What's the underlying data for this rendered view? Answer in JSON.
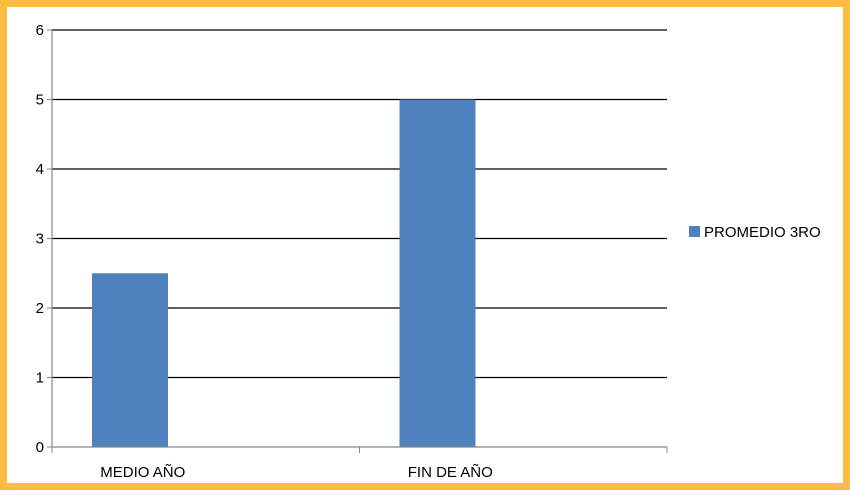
{
  "chart_data": {
    "type": "bar",
    "categories": [
      "MEDIO AÑO",
      "FIN DE AÑO"
    ],
    "series": [
      {
        "name": "PROMEDIO 3RO",
        "values": [
          2.5,
          5
        ],
        "color": "#4F81BD"
      }
    ],
    "ylim": [
      0,
      6
    ],
    "yticks": [
      0,
      1,
      2,
      3,
      4,
      5,
      6
    ],
    "grid": true,
    "legend": "right",
    "colors": {
      "border": "#FBBC3F",
      "bar": "#4F81BD",
      "gridline": "#000000"
    }
  }
}
